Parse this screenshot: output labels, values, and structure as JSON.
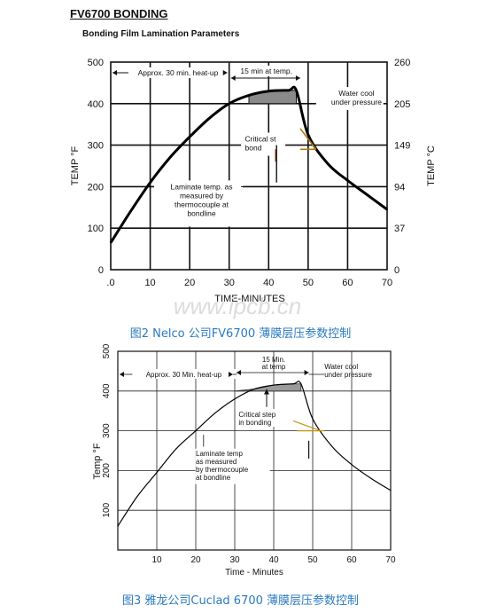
{
  "page": {
    "heading": "FV6700 BONDING",
    "subheading": "Bonding Film Lamination Parameters",
    "watermark": "www.ipcb.cn",
    "caption1": "图2 Nelco 公司FV6700 薄膜层压参数控制",
    "caption2": "图3 雅龙公司Cuclad 6700 薄膜层压参数控制",
    "caption_color": "#2a7abf"
  },
  "chart_data": [
    {
      "type": "line",
      "xlabel": "TIME-MINUTES",
      "ylabel": "TEMP °F",
      "ylabel_right": "TEMP °C",
      "xlim": [
        0,
        70
      ],
      "ylim": [
        0,
        500
      ],
      "x_ticks": [
        ".0",
        "10",
        "20",
        "30",
        "40",
        "50",
        "60",
        "70"
      ],
      "y_ticks": [
        "0",
        "100",
        "200",
        "300",
        "400",
        "500"
      ],
      "y_right_ticks": [
        "0",
        "37",
        "94",
        "149",
        "205",
        "260"
      ],
      "grid": true,
      "x": [
        0,
        5,
        10,
        15,
        20,
        25,
        30,
        35,
        40,
        45,
        47,
        50,
        55,
        60,
        65,
        70
      ],
      "y": [
        65,
        140,
        210,
        270,
        320,
        365,
        400,
        420,
        430,
        432,
        432,
        325,
        255,
        215,
        180,
        145
      ],
      "fill_over": [
        34,
        47
      ],
      "fill_above": 400,
      "annotations": [
        "Approx. 30 min. heat-up",
        "15 min at temp.",
        "Water cool\nunder pressure",
        "Critical st\nbond",
        "Laminate temp. as\nmeasured by\nthermocouple at\nbondline"
      ]
    },
    {
      "type": "line",
      "xlabel": "Time - Minutes",
      "ylabel": "Temp °F",
      "xlim": [
        0,
        70
      ],
      "ylim": [
        0,
        500
      ],
      "x_ticks": [
        "10",
        "20",
        "30",
        "40",
        "50",
        "60",
        "70"
      ],
      "y_ticks": [
        "100",
        "200",
        "300",
        "400",
        "500"
      ],
      "grid": true,
      "x": [
        0,
        5,
        10,
        15,
        20,
        25,
        30,
        35,
        40,
        45,
        47,
        50,
        55,
        60,
        65,
        70
      ],
      "y": [
        60,
        135,
        195,
        255,
        300,
        345,
        380,
        405,
        415,
        418,
        418,
        330,
        260,
        215,
        180,
        150
      ],
      "fill_over": [
        30,
        47
      ],
      "fill_above": 400,
      "annotations": [
        "Approx. 30 Min. heat-up",
        "15 Min.\nat temp",
        "Water cool\nunder pressure",
        "Critical step\nin bonding",
        "Laminate temp\nas measured\nby thermocouple\nat bondline"
      ]
    }
  ]
}
